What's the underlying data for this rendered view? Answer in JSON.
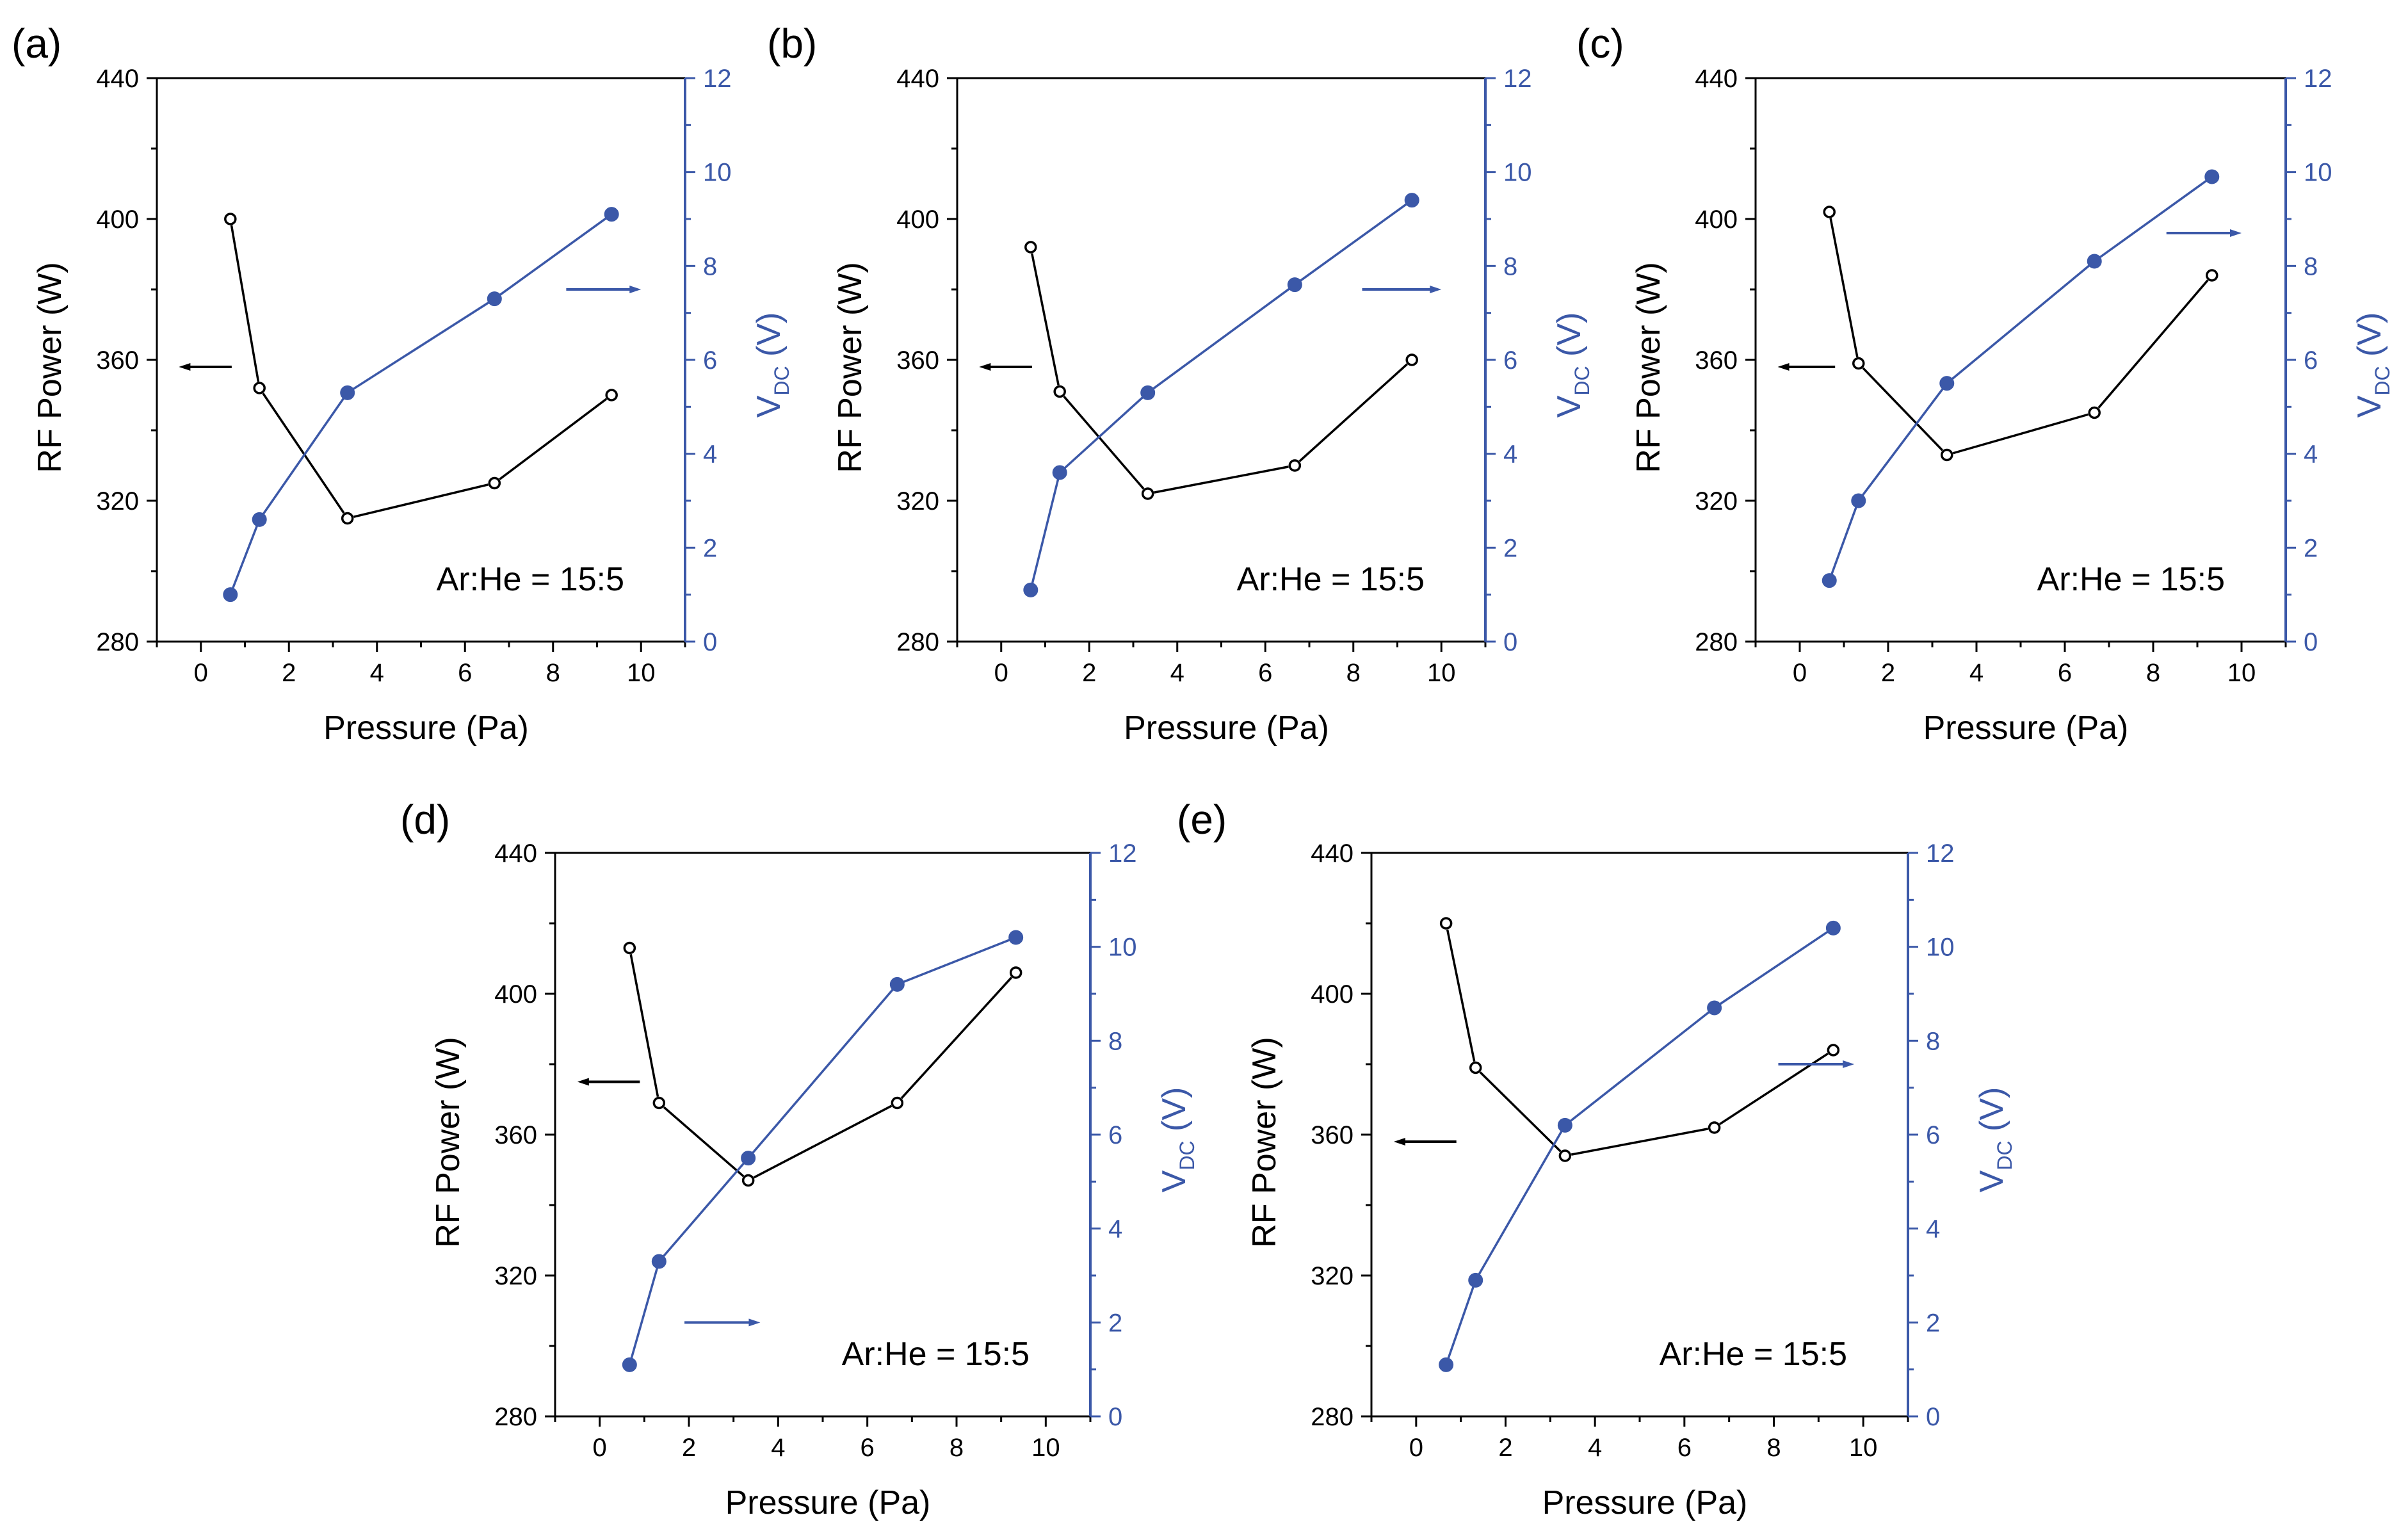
{
  "figure": {
    "description_labels": [
      "(a)",
      "(b)",
      "(c)",
      "(d)",
      "(e)"
    ],
    "colors": {
      "axis_black": "#000000",
      "axis_blue": "#3b58a8",
      "rf_series": "#000000",
      "vdc_series": "#3b58a8"
    }
  },
  "chart_data": [
    {
      "panel_label": "(a)",
      "type": "line",
      "xlabel": "Pressure (Pa)",
      "ylabel": "RF Power (W)",
      "y2label": "V",
      "y2label_sub": "DC",
      "y2label_unit": " (V)",
      "xlim": [
        -1,
        11
      ],
      "ylim": [
        280,
        440
      ],
      "y2lim": [
        0,
        12
      ],
      "xticks": [
        0,
        2,
        4,
        6,
        8,
        10
      ],
      "yticks": [
        280,
        320,
        360,
        400,
        440
      ],
      "y2ticks": [
        0,
        2,
        4,
        6,
        8,
        10,
        12
      ],
      "annotation": "Ar:He = 15:5",
      "series": [
        {
          "name": "RF Power",
          "axis": "left",
          "marker": "open-circle",
          "x": [
            0.67,
            1.33,
            3.33,
            6.67,
            9.33
          ],
          "values": [
            400,
            352,
            315,
            325,
            350
          ]
        },
        {
          "name": "V_DC",
          "axis": "right",
          "marker": "filled-circle",
          "x": [
            0.67,
            1.33,
            3.33,
            6.67,
            9.33
          ],
          "values": [
            1.0,
            2.6,
            5.3,
            7.3,
            9.1
          ]
        }
      ],
      "arrows": [
        {
          "target": "left",
          "x_from": 0.7,
          "x_to": -0.5,
          "y": 358,
          "axis": "left"
        },
        {
          "target": "right",
          "x_from": 8.3,
          "x_to": 10.0,
          "y": 7.5,
          "axis": "right"
        }
      ]
    },
    {
      "panel_label": "(b)",
      "type": "line",
      "xlabel": "Pressure (Pa)",
      "ylabel": "RF Power (W)",
      "y2label": "V",
      "y2label_sub": "DC",
      "y2label_unit": " (V)",
      "xlim": [
        -1,
        11
      ],
      "ylim": [
        280,
        440
      ],
      "y2lim": [
        0,
        12
      ],
      "xticks": [
        0,
        2,
        4,
        6,
        8,
        10
      ],
      "yticks": [
        280,
        320,
        360,
        400,
        440
      ],
      "y2ticks": [
        0,
        2,
        4,
        6,
        8,
        10,
        12
      ],
      "annotation": "Ar:He = 15:5",
      "series": [
        {
          "name": "RF Power",
          "axis": "left",
          "marker": "open-circle",
          "x": [
            0.67,
            1.33,
            3.33,
            6.67,
            9.33
          ],
          "values": [
            392,
            351,
            322,
            330,
            360
          ]
        },
        {
          "name": "V_DC",
          "axis": "right",
          "marker": "filled-circle",
          "x": [
            0.67,
            1.33,
            3.33,
            6.67,
            9.33
          ],
          "values": [
            1.1,
            3.6,
            5.3,
            7.6,
            9.4
          ]
        }
      ],
      "arrows": [
        {
          "target": "left",
          "x_from": 0.7,
          "x_to": -0.5,
          "y": 358,
          "axis": "left"
        },
        {
          "target": "right",
          "x_from": 8.2,
          "x_to": 10.0,
          "y": 7.5,
          "axis": "right"
        }
      ]
    },
    {
      "panel_label": "(c)",
      "type": "line",
      "xlabel": "Pressure (Pa)",
      "ylabel": "RF Power (W)",
      "y2label": "V",
      "y2label_sub": "DC",
      "y2label_unit": " (V)",
      "xlim": [
        -1,
        11
      ],
      "ylim": [
        280,
        440
      ],
      "y2lim": [
        0,
        12
      ],
      "xticks": [
        0,
        2,
        4,
        6,
        8,
        10
      ],
      "yticks": [
        280,
        320,
        360,
        400,
        440
      ],
      "y2ticks": [
        0,
        2,
        4,
        6,
        8,
        10,
        12
      ],
      "annotation": "Ar:He = 15:5",
      "series": [
        {
          "name": "RF Power",
          "axis": "left",
          "marker": "open-circle",
          "x": [
            0.67,
            1.33,
            3.33,
            6.67,
            9.33
          ],
          "values": [
            402,
            359,
            333,
            345,
            384
          ]
        },
        {
          "name": "V_DC",
          "axis": "right",
          "marker": "filled-circle",
          "x": [
            0.67,
            1.33,
            3.33,
            6.67,
            9.33
          ],
          "values": [
            1.3,
            3.0,
            5.5,
            8.1,
            9.9
          ]
        }
      ],
      "arrows": [
        {
          "target": "left",
          "x_from": 0.8,
          "x_to": -0.5,
          "y": 358,
          "axis": "left"
        },
        {
          "target": "right",
          "x_from": 8.3,
          "x_to": 10.0,
          "y": 8.7,
          "axis": "right"
        }
      ]
    },
    {
      "panel_label": "(d)",
      "type": "line",
      "xlabel": "Pressure (Pa)",
      "ylabel": "RF Power (W)",
      "y2label": "V",
      "y2label_sub": "DC",
      "y2label_unit": " (V)",
      "xlim": [
        -1,
        11
      ],
      "ylim": [
        280,
        440
      ],
      "y2lim": [
        0,
        12
      ],
      "xticks": [
        0,
        2,
        4,
        6,
        8,
        10
      ],
      "yticks": [
        280,
        320,
        360,
        400,
        440
      ],
      "y2ticks": [
        0,
        2,
        4,
        6,
        8,
        10,
        12
      ],
      "annotation": "Ar:He = 15:5",
      "series": [
        {
          "name": "RF Power",
          "axis": "left",
          "marker": "open-circle",
          "x": [
            0.67,
            1.33,
            3.33,
            6.67,
            9.33
          ],
          "values": [
            413,
            369,
            347,
            369,
            406
          ]
        },
        {
          "name": "V_DC",
          "axis": "right",
          "marker": "filled-circle",
          "x": [
            0.67,
            1.33,
            3.33,
            6.67,
            9.33
          ],
          "values": [
            1.1,
            3.3,
            5.5,
            9.2,
            10.2
          ]
        }
      ],
      "arrows": [
        {
          "target": "left",
          "x_from": 0.9,
          "x_to": -0.5,
          "y": 375,
          "axis": "left"
        },
        {
          "target": "right",
          "x_from": 1.9,
          "x_to": 3.6,
          "y": 2.0,
          "axis": "right"
        }
      ]
    },
    {
      "panel_label": "(e)",
      "type": "line",
      "xlabel": "Pressure (Pa)",
      "ylabel": "RF Power (W)",
      "y2label": "V",
      "y2label_sub": "DC",
      "y2label_unit": " (V)",
      "xlim": [
        -1,
        11
      ],
      "ylim": [
        280,
        440
      ],
      "y2lim": [
        0,
        12
      ],
      "xticks": [
        0,
        2,
        4,
        6,
        8,
        10
      ],
      "yticks": [
        280,
        320,
        360,
        400,
        440
      ],
      "y2ticks": [
        0,
        2,
        4,
        6,
        8,
        10,
        12
      ],
      "annotation": "Ar:He = 15:5",
      "series": [
        {
          "name": "RF Power",
          "axis": "left",
          "marker": "open-circle",
          "x": [
            0.67,
            1.33,
            3.33,
            6.67,
            9.33
          ],
          "values": [
            420,
            379,
            354,
            362,
            384
          ]
        },
        {
          "name": "V_DC",
          "axis": "right",
          "marker": "filled-circle",
          "x": [
            0.67,
            1.33,
            3.33,
            6.67,
            9.33
          ],
          "values": [
            1.1,
            2.9,
            6.2,
            8.7,
            10.4
          ]
        }
      ],
      "arrows": [
        {
          "target": "left",
          "x_from": 0.9,
          "x_to": -0.5,
          "y": 358,
          "axis": "left"
        },
        {
          "target": "right",
          "x_from": 8.1,
          "x_to": 9.8,
          "y": 7.5,
          "axis": "right"
        }
      ]
    }
  ]
}
